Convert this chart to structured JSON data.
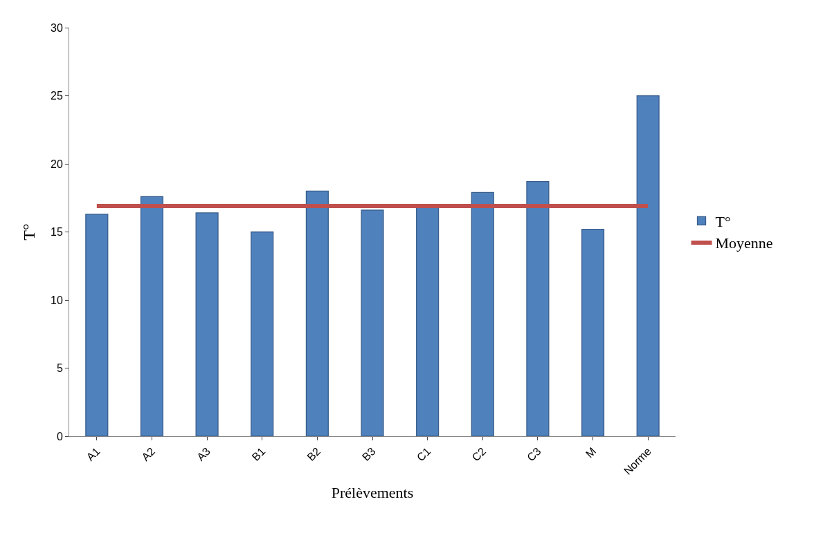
{
  "chart_data": {
    "type": "bar",
    "xlabel": "Prélèvements",
    "ylabel": "T°",
    "categories": [
      "A1",
      "A2",
      "A3",
      "B1",
      "B2",
      "B3",
      "C1",
      "C2",
      "C3",
      "M",
      "Norme"
    ],
    "series": [
      {
        "name": "T°",
        "color": "#4f81bd",
        "values": [
          16.3,
          17.6,
          16.4,
          15.0,
          18.0,
          16.6,
          16.8,
          17.9,
          18.7,
          15.2,
          25.0
        ]
      },
      {
        "name": "Moyenne",
        "type": "line",
        "color": "#c0504d",
        "values": [
          16.9,
          16.9,
          16.9,
          16.9,
          16.9,
          16.9,
          16.9,
          16.9,
          16.9,
          16.9,
          16.9
        ]
      }
    ],
    "ylim": [
      0,
      30
    ],
    "yticks": [
      0,
      5,
      10,
      15,
      20,
      25,
      30
    ],
    "legend": "right",
    "marker": "none"
  }
}
